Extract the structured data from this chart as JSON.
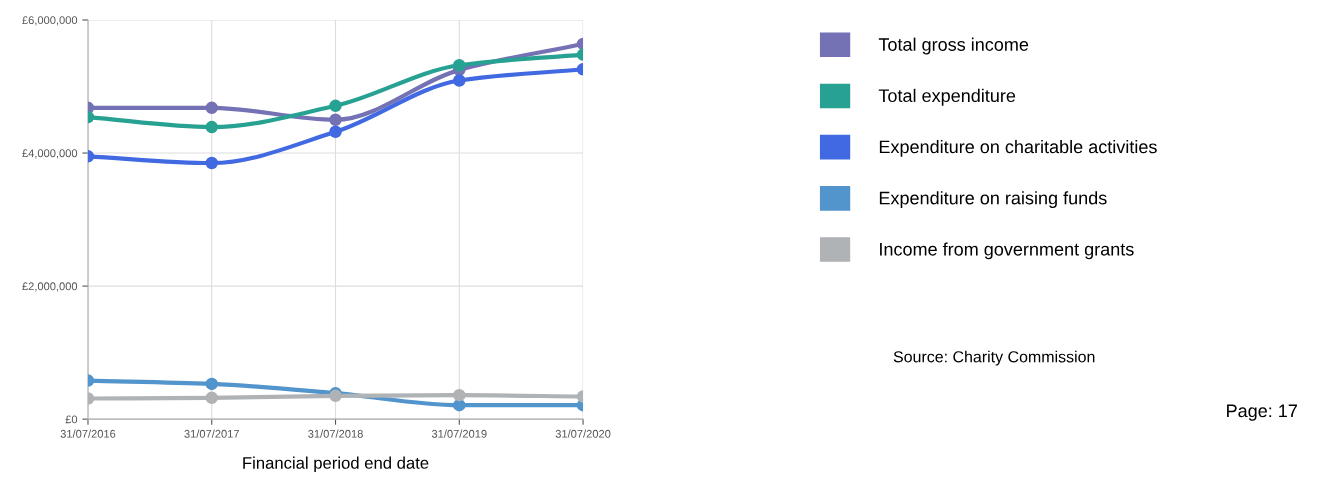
{
  "chart_data": {
    "type": "line",
    "xlabel": "Financial period end date",
    "categories": [
      "31/07/2016",
      "31/07/2017",
      "31/07/2018",
      "31/07/2019",
      "31/07/2020"
    ],
    "series": [
      {
        "name": "Total gross income",
        "color": "#7471b4",
        "values": [
          4680000,
          4680000,
          4500000,
          5250000,
          5640000
        ]
      },
      {
        "name": "Total expenditure",
        "color": "#27a292",
        "values": [
          4540000,
          4390000,
          4710000,
          5320000,
          5480000
        ]
      },
      {
        "name": "Expenditure on charitable activities",
        "color": "#4169e1",
        "values": [
          3950000,
          3850000,
          4320000,
          5090000,
          5260000
        ]
      },
      {
        "name": "Expenditure on raising funds",
        "color": "#5294cc",
        "values": [
          580000,
          530000,
          390000,
          210000,
          210000
        ]
      },
      {
        "name": "Income from government grants",
        "color": "#b0b3b6",
        "values": [
          310000,
          320000,
          350000,
          360000,
          340000
        ]
      }
    ],
    "ylim": [
      0,
      6000000
    ],
    "yticks": [
      {
        "value": 0,
        "label": "£0"
      },
      {
        "value": 2000000,
        "label": "£2,000,000"
      },
      {
        "value": 4000000,
        "label": "£4,000,000"
      },
      {
        "value": 6000000,
        "label": "£6,000,000"
      }
    ],
    "grid": true,
    "legend": "right",
    "marker": "circle",
    "line_style": "solid",
    "annotations": [
      "Source: Charity Commission",
      "Page: 17"
    ]
  }
}
